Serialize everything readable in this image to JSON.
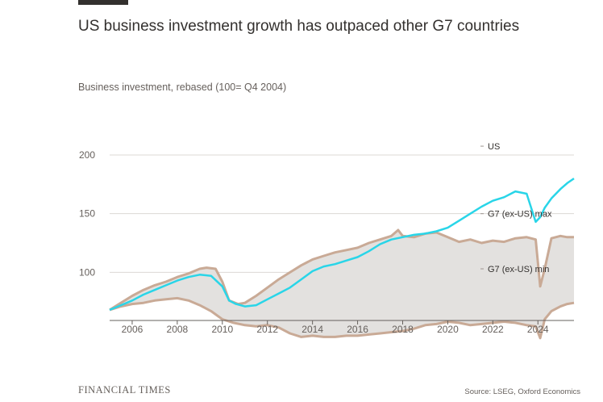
{
  "header": {
    "title": "US business investment growth has outpaced other G7 countries",
    "subtitle": "Business investment, rebased (100= Q4 2004)"
  },
  "footer": {
    "brand": "FINANCIAL TIMES",
    "source": "Source: LSEG, Oxford Economics"
  },
  "colors": {
    "us_line": "#29d5e8",
    "band_outline": "#c9aa96",
    "band_fill": "#e3e1df",
    "gridline": "#dcd8d4",
    "axis": "#66605c"
  },
  "chart_data": {
    "type": "line",
    "title": "US business investment growth has outpaced other G7 countries",
    "subtitle": "Business investment, rebased (100= Q4 2004)",
    "xlabel": "",
    "ylabel": "",
    "xlim": [
      2005.0,
      2025.6
    ],
    "ylim": [
      59,
      222
    ],
    "y_ticks": [
      100,
      150,
      200
    ],
    "y_tick_labels": [
      "100",
      "150",
      "200"
    ],
    "x_ticks": [
      2006,
      2008,
      2010,
      2012,
      2014,
      2016,
      2018,
      2020,
      2022,
      2024
    ],
    "x_tick_labels": [
      "2006",
      "2008",
      "2010",
      "2012",
      "2014",
      "2016",
      "2018",
      "2020",
      "2022",
      "2024"
    ],
    "grid": true,
    "legend": "inline-right",
    "series": [
      {
        "name": "US",
        "x": [
          2005.0,
          2005.5,
          2006.0,
          2006.5,
          2007.0,
          2007.5,
          2008.0,
          2008.5,
          2009.0,
          2009.5,
          2010.0,
          2010.3,
          2010.6,
          2011.0,
          2011.5,
          2012.0,
          2012.5,
          2013.0,
          2013.5,
          2014.0,
          2014.5,
          2015.0,
          2015.5,
          2016.0,
          2016.5,
          2017.0,
          2017.5,
          2018.0,
          2018.5,
          2019.0,
          2019.5,
          2020.0,
          2020.5,
          2021.0,
          2021.5,
          2022.0,
          2022.5,
          2023.0,
          2023.5,
          2023.9,
          2024.1,
          2024.3,
          2024.6,
          2025.0,
          2025.3,
          2025.6
        ],
        "values": [
          68,
          72,
          76,
          81,
          85,
          89,
          93,
          96,
          98,
          97,
          88,
          76,
          73,
          71,
          72,
          77,
          82,
          87,
          94,
          101,
          105,
          107,
          110,
          113,
          118,
          124,
          128,
          130,
          132,
          133,
          135,
          138,
          144,
          150,
          156,
          161,
          164,
          169,
          167,
          143,
          147,
          155,
          163,
          171,
          176,
          180
        ]
      },
      {
        "name": "G7 (ex-US) max",
        "x": [
          2005.0,
          2005.5,
          2006.0,
          2006.5,
          2007.0,
          2007.5,
          2008.0,
          2008.5,
          2009.0,
          2009.3,
          2009.7,
          2010.0,
          2010.3,
          2010.7,
          2011.0,
          2011.5,
          2012.0,
          2012.5,
          2013.0,
          2013.5,
          2014.0,
          2014.5,
          2015.0,
          2015.5,
          2016.0,
          2016.5,
          2017.0,
          2017.5,
          2017.8,
          2018.0,
          2018.5,
          2019.0,
          2019.5,
          2020.0,
          2020.5,
          2021.0,
          2021.5,
          2022.0,
          2022.5,
          2023.0,
          2023.5,
          2023.9,
          2024.1,
          2024.3,
          2024.6,
          2025.0,
          2025.3,
          2025.6
        ],
        "values": [
          68,
          74,
          80,
          85,
          89,
          92,
          96,
          99,
          103,
          104,
          103,
          92,
          76,
          73,
          74,
          80,
          87,
          94,
          100,
          106,
          111,
          114,
          117,
          119,
          121,
          125,
          128,
          131,
          136,
          131,
          130,
          133,
          134,
          130,
          126,
          128,
          125,
          127,
          126,
          129,
          130,
          128,
          88,
          103,
          129,
          131,
          130,
          130
        ]
      },
      {
        "name": "G7 (ex-US) min",
        "x": [
          2005.0,
          2005.5,
          2006.0,
          2006.5,
          2007.0,
          2007.5,
          2008.0,
          2008.5,
          2009.0,
          2009.5,
          2010.0,
          2010.5,
          2011.0,
          2011.5,
          2012.0,
          2012.5,
          2013.0,
          2013.5,
          2014.0,
          2014.5,
          2015.0,
          2015.5,
          2016.0,
          2016.5,
          2017.0,
          2017.5,
          2018.0,
          2018.5,
          2019.0,
          2019.5,
          2020.0,
          2020.5,
          2021.0,
          2021.5,
          2022.0,
          2022.5,
          2023.0,
          2023.5,
          2023.9,
          2024.1,
          2024.3,
          2024.6,
          2025.0,
          2025.3,
          2025.6
        ],
        "values": [
          68,
          71,
          73,
          74,
          76,
          77,
          78,
          76,
          72,
          67,
          60,
          57,
          55,
          54,
          55,
          53,
          48,
          45,
          46,
          45,
          45,
          46,
          46,
          47,
          48,
          49,
          50,
          52,
          55,
          56,
          58,
          57,
          55,
          56,
          57,
          58,
          57,
          55,
          54,
          44,
          60,
          67,
          71,
          73,
          74
        ]
      }
    ]
  }
}
